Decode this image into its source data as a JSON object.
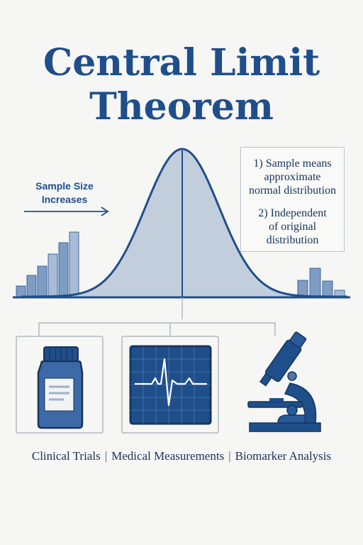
{
  "title": {
    "line1": "Central Limit",
    "line2": "Theorem"
  },
  "sample_size_label": {
    "line1": "Sample Size",
    "line2": "Increases"
  },
  "notes": {
    "item1": [
      "1) Sample means",
      "approximate",
      "normal distribution"
    ],
    "item2": [
      "2) Independent",
      "of original",
      "distribution"
    ]
  },
  "applications": [
    {
      "label": "Clinical Trials",
      "icon": "medicine-bottle-icon"
    },
    {
      "label": "Medical Measurements",
      "icon": "ecg-monitor-icon"
    },
    {
      "label": "Biomarker Analysis",
      "icon": "microscope-icon"
    }
  ],
  "colors": {
    "navy": "#1f4f8a",
    "dark_navy": "#16345e",
    "curve_fill": "#c3cedd",
    "bar_left_light": "#a8bcd6",
    "bar_left_dark": "#7f9dc3",
    "connector_gray": "#b2b8c0",
    "background": "#f6f6f4"
  }
}
